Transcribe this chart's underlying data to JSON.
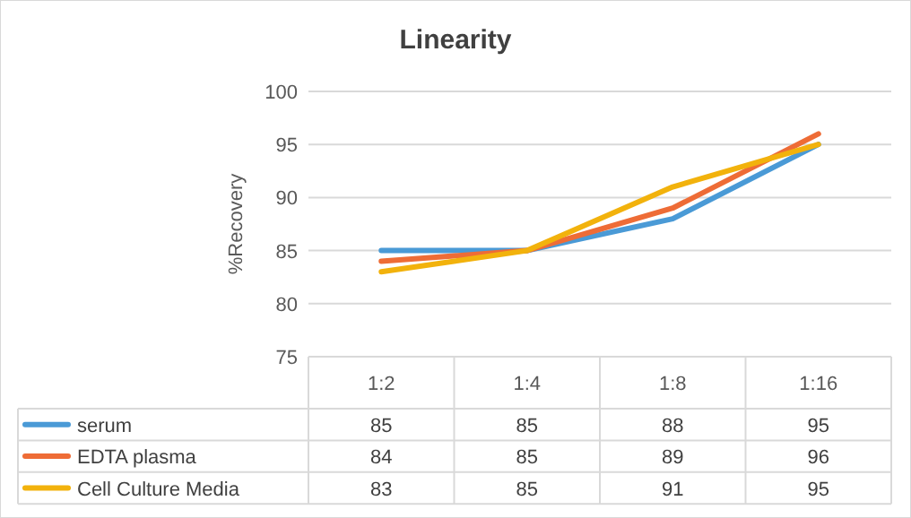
{
  "chart_data": {
    "type": "line",
    "title": "Linearity",
    "ylabel": "%Recovery",
    "categories": [
      "1:2",
      "1:4",
      "1:8",
      "1:16"
    ],
    "series": [
      {
        "name": "serum",
        "color": "#4a9ad6",
        "values": [
          85,
          85,
          88,
          95
        ]
      },
      {
        "name": "EDTA plasma",
        "color": "#ee6c36",
        "values": [
          84,
          85,
          89,
          96
        ]
      },
      {
        "name": "Cell Culture Media",
        "color": "#f2b20c",
        "values": [
          83,
          85,
          91,
          95
        ]
      }
    ],
    "ylim": [
      75,
      100
    ],
    "yticks": [
      75,
      80,
      85,
      90,
      95,
      100
    ],
    "grid": "y",
    "legend": "bottom",
    "data_labels": true,
    "marker": "none",
    "line_style": "solid"
  }
}
